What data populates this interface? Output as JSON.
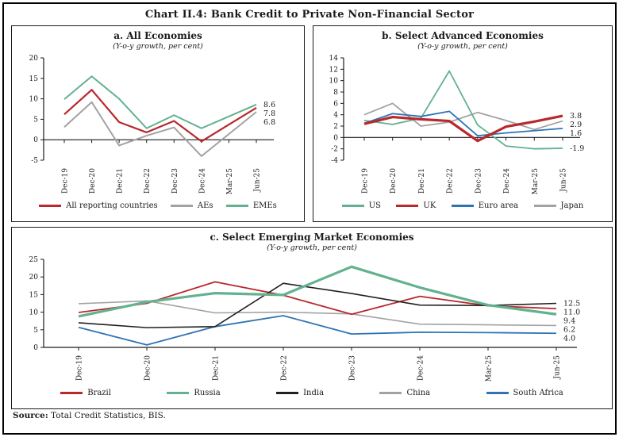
{
  "figure": {
    "title": "Chart II.4: Bank Credit to Private Non-Financial Sector",
    "source_label": "Source:",
    "source_text": " Total Credit Statistics, BIS."
  },
  "chart_data": [
    {
      "id": "a",
      "type": "line",
      "title": "a. All Economies",
      "subtitle": "(Y-o-y growth, per cent)",
      "categories": [
        "Dec-19",
        "Dec-20",
        "Dec-21",
        "Dec-22",
        "Dec-23",
        "Dec-24",
        "Mar-25",
        "Jun-25"
      ],
      "ylim": [
        -5,
        20
      ],
      "ytick_step": 5,
      "grid": false,
      "legend_position": "bottom",
      "draw_order": [
        1,
        2,
        0
      ],
      "series": [
        {
          "name": "All reporting countries",
          "color": "#b8282d",
          "width": 2.2,
          "values": [
            6.2,
            12.2,
            4.3,
            1.8,
            4.6,
            -0.4,
            3.7,
            7.8
          ],
          "end_label": "7.8"
        },
        {
          "name": "AEs",
          "color": "#a2a2a2",
          "width": 2,
          "values": [
            3.1,
            9.2,
            -1.4,
            1.0,
            3.0,
            -4.0,
            1.4,
            6.8
          ],
          "end_label": "6.8"
        },
        {
          "name": "EMEs",
          "color": "#62b18f",
          "width": 2,
          "values": [
            9.9,
            15.5,
            10.0,
            2.8,
            6.0,
            2.8,
            5.7,
            8.6
          ],
          "end_label": "8.6"
        }
      ]
    },
    {
      "id": "b",
      "type": "line",
      "title": "b. Select Advanced Economies",
      "subtitle": "(Y-o-y growth, per cent)",
      "categories": [
        "Dec-19",
        "Dec-20",
        "Dec-21",
        "Dec-22",
        "Dec-23",
        "Dec-24",
        "Mar-25",
        "Jun-25"
      ],
      "ylim": [
        -4,
        14
      ],
      "ytick_step": 2,
      "grid": false,
      "legend_position": "bottom",
      "draw_order": [
        3,
        0,
        2,
        1
      ],
      "series": [
        {
          "name": "US",
          "color": "#62b18f",
          "width": 1.8,
          "values": [
            3.0,
            2.3,
            3.4,
            11.7,
            2.2,
            -1.5,
            -2.0,
            -1.9
          ],
          "end_label": "-1.9"
        },
        {
          "name": "UK",
          "color": "#b8282d",
          "width": 3.2,
          "values": [
            2.4,
            3.6,
            3.2,
            2.9,
            -0.6,
            1.9,
            2.8,
            3.8
          ],
          "end_label": "3.8"
        },
        {
          "name": "Euro area",
          "color": "#2e74b5",
          "width": 1.8,
          "values": [
            2.5,
            4.2,
            3.7,
            4.6,
            0.3,
            0.8,
            1.2,
            1.6
          ],
          "end_label": "1.6"
        },
        {
          "name": "Japan",
          "color": "#a2a2a2",
          "width": 1.8,
          "values": [
            4.0,
            6.0,
            2.0,
            2.7,
            4.4,
            3.0,
            1.4,
            2.9
          ],
          "end_label": "2.9"
        }
      ]
    },
    {
      "id": "c",
      "type": "line",
      "title": "c. Select Emerging Market Economies",
      "subtitle": "(Y-o-y growth, per cent)",
      "categories": [
        "Dec-19",
        "Dec-20",
        "Dec-21",
        "Dec-22",
        "Dec-23",
        "Dec-24",
        "Mar-25",
        "Jun-25"
      ],
      "ylim": [
        0,
        25
      ],
      "ytick_step": 5,
      "grid": false,
      "legend_position": "bottom",
      "draw_order": [
        3,
        4,
        0,
        2,
        1
      ],
      "series": [
        {
          "name": "Brazil",
          "color": "#b8282d",
          "width": 1.8,
          "values": [
            9.9,
            12.5,
            18.6,
            14.8,
            9.4,
            14.5,
            11.8,
            11.0
          ],
          "end_label": "11.0"
        },
        {
          "name": "Russia",
          "color": "#62b18f",
          "width": 3.2,
          "values": [
            8.8,
            12.9,
            15.4,
            14.9,
            22.9,
            17.0,
            12.0,
            9.4
          ],
          "end_label": "9.4"
        },
        {
          "name": "India",
          "color": "#231f20",
          "width": 1.6,
          "values": [
            7.0,
            5.6,
            5.9,
            18.2,
            15.3,
            12.0,
            11.9,
            12.5
          ],
          "end_label": "12.5"
        },
        {
          "name": "China",
          "color": "#a2a2a2",
          "width": 1.6,
          "values": [
            12.4,
            13.2,
            9.8,
            10.0,
            9.5,
            6.6,
            6.4,
            6.2
          ],
          "end_label": "6.2"
        },
        {
          "name": "South Africa",
          "color": "#2e74b5",
          "width": 1.8,
          "values": [
            5.7,
            0.7,
            5.9,
            9.0,
            3.8,
            4.3,
            4.2,
            4.0
          ],
          "end_label": "4.0"
        }
      ]
    }
  ]
}
